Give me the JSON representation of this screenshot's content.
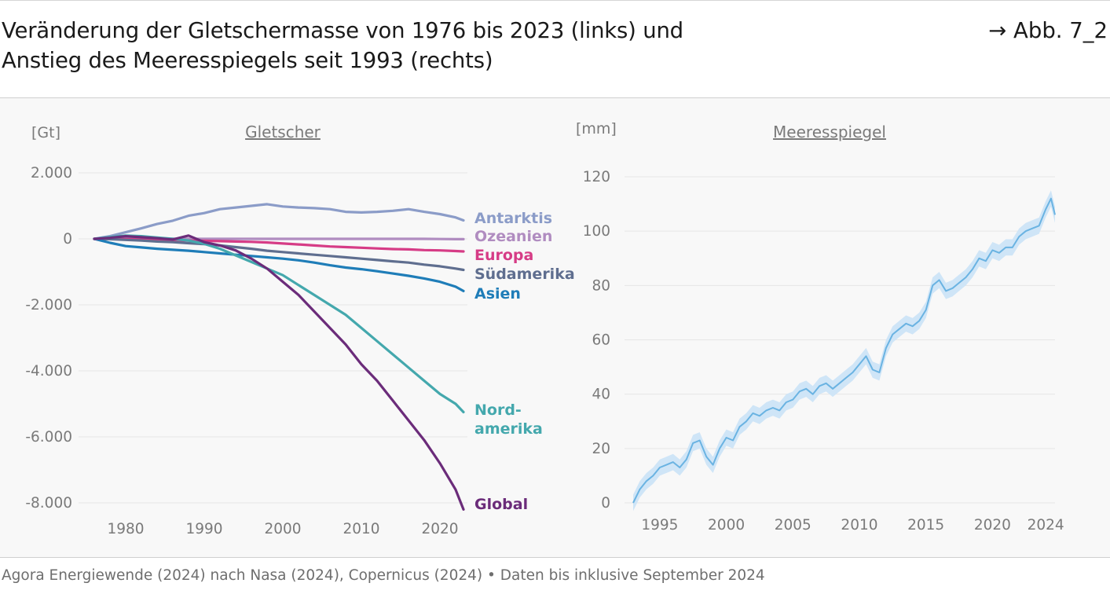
{
  "header": {
    "title_line1": "Veränderung der Gletschermasse von 1976 bis 2023 (links) und",
    "title_line2": "Anstieg des Meeresspiegels seit 1993 (rechts)",
    "figure_ref": "→ Abb. 7_2"
  },
  "footer": {
    "source": "Agora Energiewende (2024) nach Nasa (2024), Copernicus (2024) • Daten bis inklusive September 2024"
  },
  "chart_data": [
    {
      "type": "line",
      "title": "Gletscher",
      "ylabel": "[Gt]",
      "xlabel": "",
      "xlim": [
        1976,
        2023
      ],
      "ylim": [
        -8200,
        2000
      ],
      "grid": true,
      "xticks": [
        1980,
        1990,
        2000,
        2010,
        2020
      ],
      "xtick_labels": [
        "1980",
        "1990",
        "2000",
        "2010",
        "2020"
      ],
      "yticks": [
        2000,
        0,
        -2000,
        -4000,
        -6000,
        -8000
      ],
      "ytick_labels": [
        "2.000",
        "0",
        "-2.000",
        "-4.000",
        "-6.000",
        "-8.000"
      ],
      "legend": "direct labels at line ends",
      "x": [
        1976,
        1978,
        1980,
        1982,
        1984,
        1986,
        1988,
        1990,
        1992,
        1994,
        1996,
        1998,
        2000,
        2002,
        2004,
        2006,
        2008,
        2010,
        2012,
        2014,
        2016,
        2018,
        2020,
        2022,
        2023
      ],
      "series": [
        {
          "name": "Antarktis",
          "label_lines": [
            "Antarktis"
          ],
          "color": "#8b9cc8",
          "values": [
            0,
            80,
            200,
            320,
            450,
            550,
            700,
            780,
            900,
            950,
            1000,
            1050,
            980,
            950,
            930,
            900,
            820,
            800,
            820,
            850,
            900,
            820,
            750,
            650,
            560
          ]
        },
        {
          "name": "Ozeanien",
          "label_lines": [
            "Ozeanien"
          ],
          "color": "#b08cc0",
          "values": [
            0,
            5,
            10,
            10,
            10,
            5,
            5,
            0,
            0,
            0,
            0,
            0,
            0,
            0,
            0,
            0,
            0,
            0,
            0,
            0,
            0,
            0,
            -5,
            -10,
            -10
          ]
        },
        {
          "name": "Europa",
          "label_lines": [
            "Europa"
          ],
          "color": "#d63c86",
          "values": [
            0,
            0,
            -10,
            -20,
            -30,
            -40,
            -50,
            -60,
            -70,
            -80,
            -90,
            -110,
            -140,
            -170,
            -200,
            -230,
            -250,
            -270,
            -290,
            -310,
            -320,
            -340,
            -350,
            -370,
            -380
          ]
        },
        {
          "name": "Südamerika",
          "label_lines": [
            "Südamerika"
          ],
          "color": "#5f6e8f",
          "values": [
            0,
            -10,
            -30,
            -50,
            -80,
            -100,
            -130,
            -160,
            -200,
            -250,
            -300,
            -360,
            -400,
            -440,
            -480,
            -520,
            -560,
            -600,
            -640,
            -680,
            -720,
            -780,
            -830,
            -900,
            -940
          ]
        },
        {
          "name": "Asien",
          "label_lines": [
            "Asien"
          ],
          "color": "#1f7db8",
          "values": [
            0,
            -120,
            -220,
            -260,
            -300,
            -330,
            -360,
            -400,
            -440,
            -480,
            -520,
            -560,
            -600,
            -650,
            -720,
            -800,
            -870,
            -920,
            -980,
            -1050,
            -1120,
            -1200,
            -1300,
            -1450,
            -1580
          ]
        },
        {
          "name": "Nordamerika",
          "label_lines": [
            "Nord-",
            "amerika"
          ],
          "color": "#44a8ad",
          "values": [
            0,
            50,
            100,
            80,
            40,
            0,
            -50,
            -150,
            -300,
            -500,
            -700,
            -900,
            -1100,
            -1400,
            -1700,
            -2000,
            -2300,
            -2700,
            -3100,
            -3500,
            -3900,
            -4300,
            -4700,
            -5000,
            -5250
          ]
        },
        {
          "name": "Global",
          "label_lines": [
            "Global"
          ],
          "color": "#6b2c7a",
          "values": [
            0,
            30,
            80,
            50,
            20,
            -20,
            100,
            -100,
            -200,
            -350,
            -600,
            -900,
            -1300,
            -1700,
            -2200,
            -2700,
            -3200,
            -3800,
            -4300,
            -4900,
            -5500,
            -6100,
            -6800,
            -7600,
            -8200
          ]
        }
      ]
    },
    {
      "type": "area",
      "title": "Meeresspiegel",
      "ylabel": "[mm]",
      "xlabel": "",
      "xlim": [
        1993,
        2024.7
      ],
      "ylim": [
        0,
        120
      ],
      "grid": true,
      "xticks": [
        1995,
        2000,
        2005,
        2010,
        2015,
        2020,
        2024
      ],
      "xtick_labels": [
        "1995",
        "2000",
        "2005",
        "2010",
        "2015",
        "2020",
        "2024"
      ],
      "yticks": [
        0,
        20,
        40,
        60,
        80,
        100,
        120
      ],
      "ytick_labels": [
        "0",
        "20",
        "40",
        "60",
        "80",
        "100",
        "120"
      ],
      "color": "#6ab3e2",
      "band_color": "#cfe5f7",
      "x": [
        1993.0,
        1993.5,
        1994.0,
        1994.5,
        1995.0,
        1995.5,
        1996.0,
        1996.5,
        1997.0,
        1997.5,
        1998.0,
        1998.5,
        1999.0,
        1999.5,
        2000.0,
        2000.5,
        2001.0,
        2001.5,
        2002.0,
        2002.5,
        2003.0,
        2003.5,
        2004.0,
        2004.5,
        2005.0,
        2005.5,
        2006.0,
        2006.5,
        2007.0,
        2007.5,
        2008.0,
        2008.5,
        2009.0,
        2009.5,
        2010.0,
        2010.5,
        2011.0,
        2011.5,
        2012.0,
        2012.5,
        2013.0,
        2013.5,
        2014.0,
        2014.5,
        2015.0,
        2015.5,
        2016.0,
        2016.5,
        2017.0,
        2017.5,
        2018.0,
        2018.5,
        2019.0,
        2019.5,
        2020.0,
        2020.5,
        2021.0,
        2021.5,
        2022.0,
        2022.5,
        2023.0,
        2023.5,
        2024.0,
        2024.4,
        2024.7
      ],
      "series": [
        {
          "name": "",
          "values": [
            0,
            5,
            8,
            10,
            13,
            14,
            15,
            13,
            16,
            22,
            23,
            17,
            14,
            20,
            24,
            23,
            28,
            30,
            33,
            32,
            34,
            35,
            34,
            37,
            38,
            41,
            42,
            40,
            43,
            44,
            42,
            44,
            46,
            48,
            51,
            54,
            49,
            48,
            57,
            62,
            64,
            66,
            65,
            67,
            71,
            80,
            82,
            78,
            79,
            81,
            83,
            86,
            90,
            89,
            93,
            92,
            94,
            94,
            98,
            100,
            101,
            102,
            108,
            112,
            106
          ]
        },
        {
          "name": "",
          "values": [
            -3,
            2,
            5,
            7,
            10,
            11,
            12,
            10,
            13,
            19,
            20,
            14,
            11,
            17,
            21,
            20,
            25,
            27,
            30,
            29,
            31,
            32,
            31,
            34,
            35,
            38,
            39,
            37,
            40,
            41,
            39,
            41,
            43,
            45,
            48,
            51,
            46,
            45,
            54,
            59,
            61,
            63,
            62,
            64,
            68,
            77,
            79,
            75,
            76,
            78,
            80,
            83,
            87,
            86,
            90,
            89,
            91,
            91,
            95,
            97,
            98,
            99,
            105,
            109,
            103
          ]
        },
        {
          "name": "",
          "values": [
            3,
            8,
            11,
            13,
            16,
            17,
            18,
            16,
            19,
            25,
            26,
            20,
            17,
            23,
            27,
            26,
            31,
            33,
            36,
            35,
            37,
            38,
            37,
            40,
            41,
            44,
            45,
            43,
            46,
            47,
            45,
            47,
            49,
            51,
            54,
            57,
            52,
            51,
            60,
            65,
            67,
            69,
            68,
            70,
            74,
            83,
            85,
            81,
            82,
            84,
            86,
            89,
            93,
            92,
            96,
            95,
            97,
            97,
            101,
            103,
            104,
            105,
            111,
            115,
            109
          ]
        }
      ]
    }
  ]
}
